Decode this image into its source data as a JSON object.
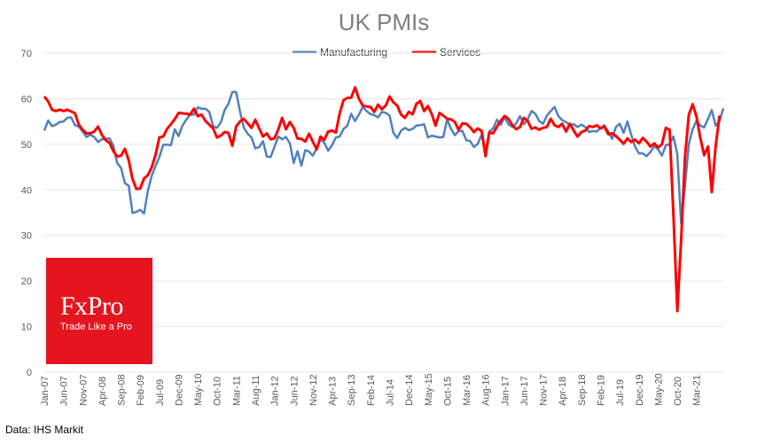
{
  "source": "Data: IHS Markit",
  "logo": {
    "name": "FxPro",
    "tagline": "Trade Like a Pro"
  },
  "colors": {
    "manufacturing": "#4f81bd",
    "services": "#ff0000",
    "grid": "#e6e6e6"
  },
  "chart_data": {
    "type": "line",
    "title": "UK PMIs",
    "xlabel": "",
    "ylabel": "",
    "ylim": [
      0,
      70
    ],
    "yticks": [
      0,
      10,
      20,
      30,
      40,
      50,
      60,
      70
    ],
    "grid": true,
    "legend_position": "top-center",
    "x_tick_labels": [
      "Jan-07",
      "Jun-07",
      "Nov-07",
      "Apr-08",
      "Sep-08",
      "Feb-09",
      "Jul-09",
      "Dec-09",
      "May-10",
      "Oct-10",
      "Mar-11",
      "Aug-11",
      "Jan-12",
      "Jun-12",
      "Nov-12",
      "Apr-13",
      "Sep-13",
      "Feb-14",
      "Jul-14",
      "Dec-14",
      "May-15",
      "Oct-15",
      "Mar-16",
      "Aug-16",
      "Jan-17",
      "Jun-17",
      "Nov-17",
      "Apr-18",
      "Sep-18",
      "Feb-19",
      "Jul-19",
      "Dec-19",
      "May-20",
      "Oct-20",
      "Mar-21"
    ],
    "x_start": "Jan-07",
    "x_end": "Mar-21",
    "series": [
      {
        "name": "Manufacturing",
        "color": "#4f81bd",
        "values": [
          53,
          55.2,
          54,
          54.3,
          54.9,
          55,
          55.8,
          55.9,
          54.2,
          53.9,
          52.8,
          51.6,
          52.1,
          51.6,
          50.5,
          51.1,
          51.2,
          51.3,
          49.7,
          45.9,
          44.8,
          41.5,
          40.9,
          34.9,
          35.2,
          35.6,
          34.8,
          39.8,
          43.1,
          45.3,
          47.2,
          49.9,
          49.9,
          49.8,
          53.3,
          51.8,
          54.1,
          55.4,
          56.5,
          56.5,
          58.1,
          57.8,
          57.8,
          57.1,
          54,
          53.6,
          54.8,
          57.5,
          58.9,
          61.5,
          61.5,
          57.2,
          53.7,
          52.3,
          51.5,
          49.1,
          49.4,
          50.7,
          47.3,
          47.2,
          49.5,
          51.7,
          51.1,
          51.6,
          50.2,
          45.9,
          48.5,
          45.3,
          48.7,
          48.4,
          47.5,
          49.1,
          51.1,
          50.3,
          48.6,
          49.8,
          51.5,
          51.7,
          53.4,
          54.1,
          56.7,
          55.1,
          56.5,
          58.2,
          57.3,
          56.6,
          56.4,
          55.9,
          57.1,
          56.9,
          56.3,
          52.5,
          51.4,
          53,
          53.6,
          53.1,
          53.4,
          54.1,
          54.2,
          54.4,
          51.5,
          51.9,
          51.7,
          51.5,
          51.6,
          55.5,
          53.4,
          52,
          52.9,
          52.9,
          50.9,
          50.7,
          49.4,
          50.1,
          52.1,
          48.3,
          52.8,
          53.5,
          55.4,
          54.3,
          55.9,
          54.4,
          53.8,
          54.6,
          56.2,
          54.4,
          55.5,
          57.3,
          56.7,
          55.1,
          54.5,
          56.3,
          57.3,
          58.2,
          56.2,
          55.3,
          54.9,
          54.2,
          54.4,
          53.8,
          54.3,
          53.8,
          52.7,
          52.9,
          52.8,
          53.6,
          54.2,
          52.8,
          51.2,
          53.8,
          54.5,
          52.5,
          55,
          52.1,
          49.4,
          48,
          48,
          47.4,
          48.3,
          49.6,
          48.9,
          47.5,
          49.8,
          50,
          51.7,
          47.8,
          32.6,
          40.7,
          50.1,
          53.3,
          55.2,
          54.1,
          53.7,
          55.6,
          57.5,
          54.1,
          55.1,
          57.9
        ]
      },
      {
        "name": "Services",
        "color": "#ff0000",
        "values": [
          60.5,
          59.4,
          57.6,
          57.3,
          57.6,
          57.3,
          57.6,
          57.2,
          56.8,
          54.3,
          53.2,
          52.4,
          52.4,
          52.8,
          53.9,
          52.1,
          50.9,
          50.3,
          48.5,
          47.3,
          47.5,
          49,
          46.5,
          42.4,
          40.2,
          40.3,
          42.5,
          43.2,
          45,
          47.7,
          51.5,
          51.7,
          53.4,
          54.4,
          55.5,
          56.9,
          56.8,
          56.7,
          56.5,
          57.8,
          56.2,
          56.5,
          55.1,
          54.3,
          53.5,
          51.5,
          51.9,
          52.7,
          52.5,
          49.7,
          53.9,
          55,
          55.6,
          54.6,
          53.6,
          55.4,
          53.5,
          51.7,
          52.4,
          51.1,
          51.3,
          53.3,
          55.8,
          53.3,
          54.9,
          53.6,
          51.3,
          51.2,
          50.6,
          52.3,
          50.6,
          48.9,
          51.7,
          51,
          52.8,
          53,
          52.6,
          56.8,
          59.7,
          60.2,
          60.2,
          62.5,
          60,
          58.5,
          58.3,
          58.2,
          57.1,
          58.7,
          57.7,
          58.5,
          60.5,
          59.2,
          58.5,
          56.5,
          55.8,
          57.1,
          56.6,
          58.9,
          59.5,
          57.3,
          58.4,
          56.6,
          54.1,
          56.9,
          56.3,
          55.6,
          55.5,
          54.9,
          53.2,
          54.6,
          54.5,
          53.7,
          52.7,
          53.5,
          52.9,
          47.4,
          52.6,
          52.4,
          53.9,
          55.2,
          56.2,
          55.6,
          54.2,
          53.3,
          53.8,
          55.8,
          55.1,
          53.4,
          53.7,
          53.2,
          53.6,
          53.8,
          55.6,
          54.2,
          53.8,
          54.5,
          52.8,
          54.5,
          53,
          51.7,
          52.7,
          53,
          54,
          53.8,
          54.2,
          53.5,
          53.9,
          52.2,
          52.4,
          51.8,
          51,
          50.1,
          51.3,
          50.5,
          51,
          50.2,
          51.4,
          50.6,
          49.5,
          50.2,
          49.3,
          50,
          53.6,
          53.2,
          34.5,
          13.4,
          29,
          47.1,
          56.5,
          58.8,
          56.1,
          51.4,
          47.6,
          49.5,
          39.5,
          49.5,
          56.3
        ]
      }
    ]
  }
}
